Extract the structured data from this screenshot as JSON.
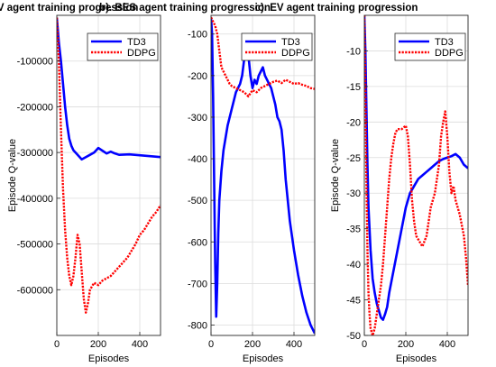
{
  "chart_data": [
    {
      "type": "line",
      "title": "a). PV agent training progression",
      "xlabel": "Episodes",
      "ylabel": "Episode Q-value",
      "xlim": [
        0,
        500
      ],
      "ylim": [
        -700000,
        0
      ],
      "xticks": [
        0,
        200,
        400
      ],
      "yticks": [
        -100000,
        -200000,
        -300000,
        -400000,
        -500000,
        -600000
      ],
      "ytick_labels": [
        "-100000",
        "-200000",
        "-300000",
        "-400000",
        "-500000",
        "-600000"
      ],
      "grid": true,
      "legend_position": "top-right",
      "series": [
        {
          "name": "TD3",
          "color": "#0000ff",
          "style": "solid",
          "x": [
            0,
            10,
            20,
            30,
            40,
            50,
            60,
            70,
            80,
            90,
            100,
            120,
            140,
            160,
            180,
            200,
            220,
            240,
            260,
            280,
            300,
            350,
            400,
            450,
            500
          ],
          "y": [
            -5000,
            -60000,
            -100000,
            -150000,
            -200000,
            -240000,
            -270000,
            -285000,
            -295000,
            -300000,
            -305000,
            -315000,
            -310000,
            -305000,
            -300000,
            -290000,
            -296000,
            -302000,
            -298000,
            -302000,
            -305000,
            -304000,
            -306000,
            -308000,
            -310000
          ]
        },
        {
          "name": "DDPG",
          "color": "#ff0000",
          "style": "dotted",
          "x": [
            0,
            10,
            20,
            30,
            40,
            50,
            60,
            70,
            80,
            90,
            100,
            110,
            120,
            130,
            140,
            150,
            160,
            180,
            200,
            220,
            240,
            260,
            280,
            300,
            320,
            340,
            360,
            380,
            400,
            420,
            440,
            460,
            480,
            500
          ],
          "y": [
            -5000,
            -100000,
            -250000,
            -380000,
            -470000,
            -530000,
            -570000,
            -590000,
            -570000,
            -530000,
            -480000,
            -500000,
            -560000,
            -620000,
            -650000,
            -630000,
            -600000,
            -585000,
            -590000,
            -580000,
            -575000,
            -570000,
            -560000,
            -550000,
            -540000,
            -530000,
            -515000,
            -500000,
            -480000,
            -470000,
            -455000,
            -440000,
            -430000,
            -415000
          ]
        }
      ]
    },
    {
      "type": "line",
      "title": "b). BES agent training progression",
      "xlabel": "Episodes",
      "ylabel": "",
      "xlim": [
        0,
        500
      ],
      "ylim": [
        -825,
        -55
      ],
      "xticks": [
        0,
        200,
        400
      ],
      "yticks": [
        -100,
        -200,
        -300,
        -400,
        -500,
        -600,
        -700,
        -800
      ],
      "ytick_labels": [
        "-100",
        "-200",
        "-300",
        "-400",
        "-500",
        "-600",
        "-700",
        "-800"
      ],
      "grid": true,
      "legend_position": "top-right",
      "series": [
        {
          "name": "TD3",
          "color": "#0000ff",
          "style": "solid",
          "x": [
            0,
            5,
            10,
            15,
            20,
            25,
            30,
            35,
            40,
            50,
            60,
            70,
            80,
            90,
            100,
            110,
            120,
            130,
            140,
            150,
            160,
            170,
            180,
            190,
            200,
            210,
            220,
            230,
            240,
            250,
            260,
            270,
            280,
            290,
            300,
            310,
            320,
            330,
            340,
            350,
            360,
            380,
            400,
            420,
            440,
            460,
            480,
            490,
            500
          ],
          "y": [
            -60,
            -100,
            -250,
            -450,
            -650,
            -780,
            -700,
            -580,
            -500,
            -430,
            -380,
            -350,
            -320,
            -300,
            -280,
            -260,
            -240,
            -230,
            -220,
            -200,
            -160,
            -130,
            -150,
            -200,
            -230,
            -210,
            -220,
            -200,
            -190,
            -180,
            -200,
            -210,
            -220,
            -230,
            -250,
            -270,
            -300,
            -310,
            -330,
            -380,
            -450,
            -550,
            -620,
            -680,
            -730,
            -770,
            -800,
            -810,
            -820
          ]
        },
        {
          "name": "DDPG",
          "color": "#ff0000",
          "style": "dotted",
          "x": [
            0,
            10,
            20,
            30,
            40,
            50,
            60,
            70,
            80,
            90,
            100,
            120,
            140,
            160,
            180,
            200,
            220,
            240,
            260,
            280,
            300,
            320,
            340,
            360,
            380,
            400,
            420,
            440,
            460,
            480,
            500
          ],
          "y": [
            -60,
            -70,
            -80,
            -100,
            -140,
            -180,
            -190,
            -200,
            -210,
            -220,
            -225,
            -230,
            -235,
            -240,
            -250,
            -235,
            -240,
            -230,
            -225,
            -220,
            -215,
            -212,
            -218,
            -210,
            -215,
            -220,
            -218,
            -222,
            -225,
            -230,
            -232
          ]
        }
      ]
    },
    {
      "type": "line",
      "title": "c). EV agent training progression",
      "xlabel": "Episodes",
      "ylabel": "Episode Q-value",
      "xlim": [
        0,
        500
      ],
      "ylim": [
        -50,
        -5
      ],
      "xticks": [
        0,
        200,
        400
      ],
      "yticks": [
        -10,
        -15,
        -20,
        -25,
        -30,
        -35,
        -40,
        -45,
        -50
      ],
      "ytick_labels": [
        "-10",
        "-15",
        "-20",
        "-25",
        "-30",
        "-35",
        "-40",
        "-45",
        "-50"
      ],
      "grid": true,
      "legend_position": "top-right",
      "series": [
        {
          "name": "TD3",
          "color": "#0000ff",
          "style": "solid",
          "x": [
            0,
            5,
            10,
            15,
            20,
            30,
            40,
            50,
            60,
            70,
            80,
            90,
            100,
            110,
            120,
            140,
            160,
            180,
            200,
            220,
            240,
            260,
            280,
            300,
            320,
            340,
            360,
            380,
            400,
            420,
            440,
            460,
            480,
            500
          ],
          "y": [
            -5,
            -10,
            -18,
            -26,
            -32,
            -38,
            -42,
            -44,
            -45.5,
            -46.5,
            -47.5,
            -47.8,
            -47,
            -46,
            -44,
            -41,
            -38,
            -35,
            -32,
            -30,
            -29,
            -28,
            -27.5,
            -27,
            -26.5,
            -26,
            -25.5,
            -25.2,
            -25,
            -24.8,
            -24.5,
            -25,
            -26,
            -26.5
          ]
        },
        {
          "name": "DDPG",
          "color": "#ff0000",
          "style": "dotted",
          "x": [
            0,
            5,
            10,
            15,
            20,
            25,
            30,
            40,
            50,
            60,
            70,
            80,
            90,
            100,
            110,
            120,
            130,
            140,
            150,
            160,
            180,
            200,
            210,
            220,
            230,
            240,
            250,
            260,
            280,
            300,
            320,
            340,
            360,
            370,
            380,
            390,
            400,
            410,
            420,
            430,
            440,
            460,
            480,
            490,
            500
          ],
          "y": [
            -5,
            -15,
            -28,
            -38,
            -44,
            -47,
            -49,
            -50,
            -49,
            -47,
            -45,
            -43,
            -40,
            -36,
            -32,
            -28,
            -25,
            -23,
            -21.5,
            -21,
            -21,
            -20.5,
            -22,
            -26,
            -31,
            -34,
            -36,
            -36.5,
            -37.5,
            -36,
            -32,
            -30,
            -26,
            -22,
            -20,
            -18.5,
            -22,
            -27,
            -30,
            -29,
            -31,
            -33,
            -36,
            -39,
            -43
          ]
        }
      ]
    }
  ]
}
